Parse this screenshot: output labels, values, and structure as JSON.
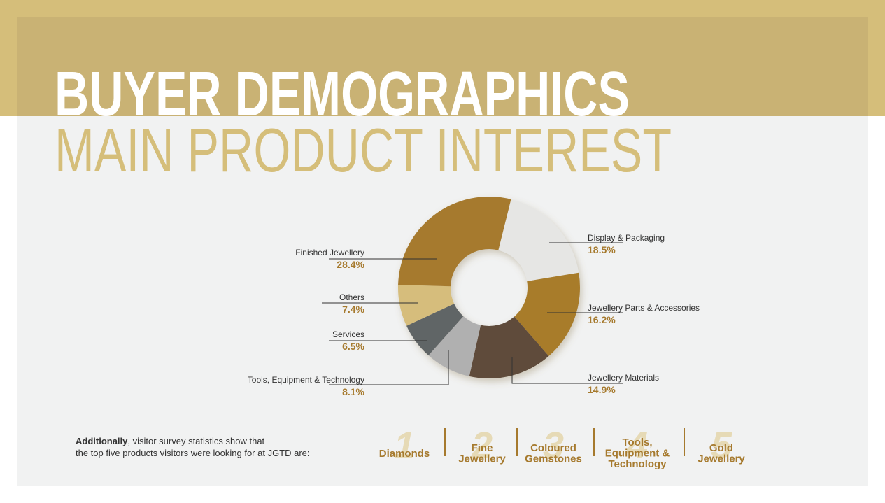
{
  "chart_data": {
    "type": "donut",
    "title": "BUYER DEMOGRAPHICS",
    "subtitle": "MAIN PRODUCT INTEREST",
    "categories": [
      "Display & Packaging",
      "Jewellery Parts & Accessories",
      "Jewellery Materials",
      "Tools, Equipment & Technology",
      "Services",
      "Others",
      "Finished Jewellery"
    ],
    "values": [
      18.5,
      16.2,
      14.9,
      8.1,
      6.5,
      7.4,
      28.4
    ],
    "value_labels": [
      "18.5%",
      "16.2%",
      "14.9%",
      "8.1%",
      "6.5%",
      "7.4%",
      "28.4%"
    ],
    "colors": [
      "#e6e6e4",
      "#a87c2c",
      "#5f4b3b",
      "#b0b0b0",
      "#616566",
      "#d6bd7c",
      "#a67a2e"
    ]
  },
  "note": {
    "bold": "Additionally",
    "lines": [
      ", visitor survey statistics show that",
      "the top five products visitors were looking for at JGTD are:"
    ]
  },
  "top_five": [
    {
      "rank": 1,
      "lines": [
        "Diamonds"
      ]
    },
    {
      "rank": 2,
      "lines": [
        "Fine",
        "Jewellery"
      ]
    },
    {
      "rank": 3,
      "lines": [
        "Coloured",
        "Gemstones"
      ]
    },
    {
      "rank": 4,
      "lines": [
        "Tools,",
        "Equipment &",
        "Technology"
      ]
    },
    {
      "rank": 5,
      "lines": [
        "Gold",
        "Jewellery"
      ]
    }
  ]
}
